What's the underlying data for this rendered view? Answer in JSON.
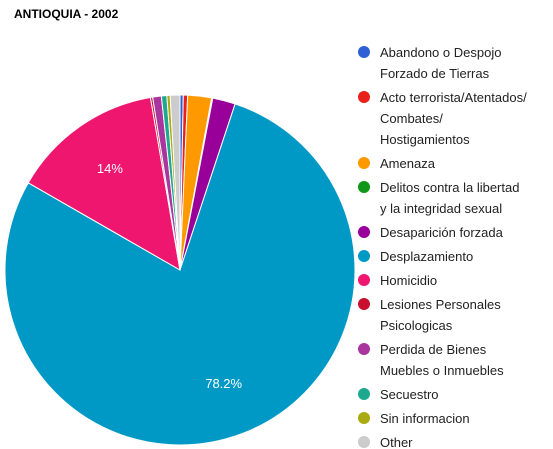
{
  "chart_data": {
    "type": "pie",
    "title": "ANTIOQUIA - 2002",
    "categories": [
      "Abandono o Despojo\nForzado de Tierras",
      "Acto terrorista/Atentados/\nCombates/\nHostigamientos",
      "Amenaza",
      "Delitos contra la libertad\ny la integridad sexual",
      "Desaparición forzada",
      "Desplazamiento",
      "Homicidio",
      "Lesiones Personales\nPsicologicas",
      "Perdida de Bienes\nMuebles o Inmuebles",
      "Secuestro",
      "Sin informacion",
      "Other"
    ],
    "values": [
      0.3,
      0.4,
      2.2,
      0.1,
      2.1,
      78.2,
      14,
      0.2,
      0.8,
      0.5,
      0.3,
      0.9
    ],
    "value_labels": [
      null,
      null,
      null,
      null,
      null,
      "78.2%",
      "14%",
      null,
      null,
      null,
      null,
      null
    ],
    "colors": [
      "#2f5fd5",
      "#e8221b",
      "#ff9900",
      "#109618",
      "#990099",
      "#0099c6",
      "#ef1670",
      "#c8102e",
      "#a9359f",
      "#1fa890",
      "#aaaa11",
      "#cccccc"
    ],
    "legend": "right"
  }
}
